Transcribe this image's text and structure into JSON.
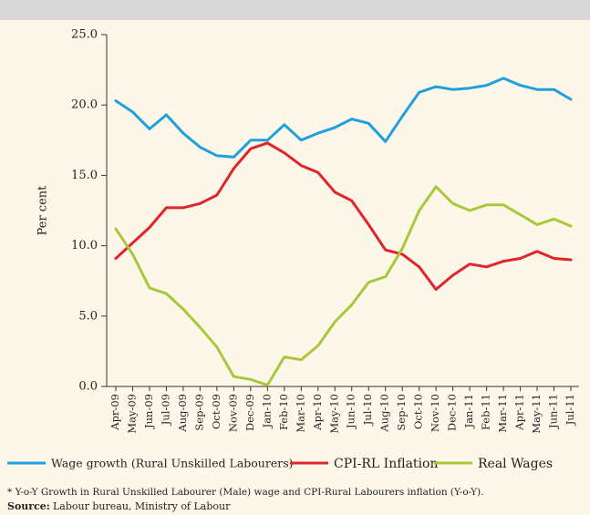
{
  "chart_data": {
    "type": "line",
    "ylabel": "Per cent",
    "categories": [
      "Apr-09",
      "May-09",
      "Jun-09",
      "Jul-09",
      "Aug-09",
      "Sep-09",
      "Oct-09",
      "Nov-09",
      "Dec-09",
      "Jan-10",
      "Feb-10",
      "Mar-10",
      "Apr-10",
      "May-10",
      "Jun-10",
      "Jul-10",
      "Aug-10",
      "Sep-10",
      "Oct-10",
      "Nov-10",
      "Dec-10",
      "Jan-11",
      "Feb-11",
      "Mar-11",
      "Apr-11",
      "May-11",
      "Jun-11",
      "Jul-11"
    ],
    "series": [
      {
        "name": "Wage growth (Rural Unskilled Labourers)",
        "color": "#1ea0dc",
        "values": [
          20.3,
          19.5,
          18.3,
          19.3,
          18.0,
          17.0,
          16.4,
          16.3,
          17.5,
          17.5,
          18.6,
          17.5,
          18.0,
          18.4,
          19.0,
          18.7,
          17.4,
          19.2,
          20.9,
          21.3,
          21.1,
          21.2,
          21.4,
          21.9,
          21.4,
          21.1,
          21.1,
          20.4
        ]
      },
      {
        "name": "CPI-RL Inflation",
        "color": "#e2232a",
        "values": [
          9.1,
          10.2,
          11.3,
          12.7,
          12.7,
          13.0,
          13.6,
          15.5,
          16.9,
          17.3,
          16.6,
          15.7,
          15.2,
          13.8,
          13.2,
          11.5,
          9.7,
          9.4,
          8.5,
          6.9,
          7.9,
          8.7,
          8.5,
          8.9,
          9.1,
          9.6,
          9.1,
          9.0
        ]
      },
      {
        "name": "Real Wages",
        "color": "#a8c83c",
        "values": [
          11.2,
          9.4,
          7.0,
          6.6,
          5.5,
          4.2,
          2.8,
          0.7,
          0.5,
          0.1,
          2.1,
          1.9,
          2.9,
          4.6,
          5.8,
          7.4,
          7.8,
          9.8,
          12.5,
          14.2,
          13.0,
          12.5,
          12.9,
          12.9,
          12.2,
          11.5,
          11.9,
          11.4
        ]
      }
    ],
    "ylim": [
      0,
      25
    ],
    "yticks": [
      {
        "value": 0,
        "label": "0.0"
      },
      {
        "value": 5,
        "label": "5.0"
      },
      {
        "value": 10,
        "label": "10.0"
      },
      {
        "value": 15,
        "label": "15.0"
      },
      {
        "value": 20,
        "label": "20.0"
      },
      {
        "value": 25,
        "label": "25.0"
      }
    ],
    "legend": "bottom",
    "footnote": "* Y-o-Y Growth in Rural Unskilled Labourer (Male) wage and CPI-Rural Labourers inflation (Y-o-Y).",
    "source_label": "Source:",
    "source": "Labour bureau, Ministry of Labour"
  }
}
